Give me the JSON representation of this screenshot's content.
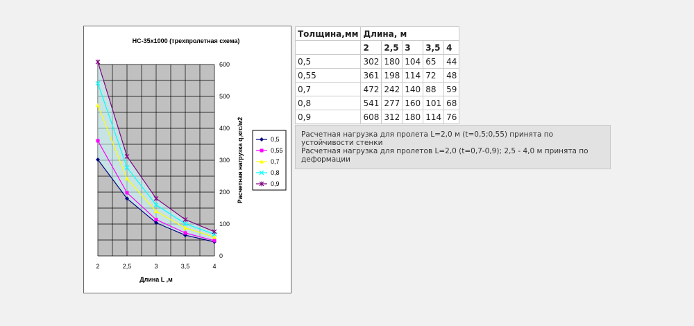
{
  "chart_data": {
    "type": "line",
    "title": "НС-35х1000 (трехпролетная схема)",
    "xlabel": "Длина L ,м",
    "ylabel": "Расчетная нагрузка q,кгс/м2",
    "x": [
      2,
      2.5,
      3,
      3.5,
      4
    ],
    "xlim": [
      2,
      4
    ],
    "ylim": [
      0,
      600
    ],
    "xticks": [
      "2",
      "2,5",
      "3",
      "3,5",
      "4"
    ],
    "yticks": [
      "0",
      "100",
      "200",
      "300",
      "400",
      "500",
      "600"
    ],
    "grid": true,
    "plot_background": "#c0c0c0",
    "legend_position": "right",
    "series": [
      {
        "name": "0,5",
        "values": [
          302,
          180,
          104,
          65,
          44
        ],
        "color": "#000080",
        "marker": "diamond"
      },
      {
        "name": "0,55",
        "values": [
          361,
          198,
          114,
          72,
          48
        ],
        "color": "#ff00ff",
        "marker": "square"
      },
      {
        "name": "0,7",
        "values": [
          472,
          242,
          140,
          88,
          59
        ],
        "color": "#ffff00",
        "marker": "triangle"
      },
      {
        "name": "0,8",
        "values": [
          541,
          277,
          160,
          101,
          68
        ],
        "color": "#00ffff",
        "marker": "x"
      },
      {
        "name": "0,9",
        "values": [
          608,
          312,
          180,
          114,
          76
        ],
        "color": "#800080",
        "marker": "star"
      }
    ]
  },
  "table": {
    "header_thickness": "Толщина,мм",
    "header_length": "Длина, м",
    "lengths": [
      "2",
      "2,5",
      "3",
      "3,5",
      "4"
    ],
    "rows": [
      [
        "0,5",
        "302",
        "180",
        "104",
        "65",
        "44"
      ],
      [
        "0,55",
        "361",
        "198",
        "114",
        "72",
        "48"
      ],
      [
        "0,7",
        "472",
        "242",
        "140",
        "88",
        "59"
      ],
      [
        "0,8",
        "541",
        "277",
        "160",
        "101",
        "68"
      ],
      [
        "0,9",
        "608",
        "312",
        "180",
        "114",
        "76"
      ]
    ]
  },
  "note": {
    "line1": "Расчетная нагрузка для пролета L=2,0 м (t=0,5;0,55) принята по устойчивости стенки",
    "line2": "Расчетная нагрузка для пролетов L=2,0 (t=0,7-0,9); 2,5 - 4,0 м принята по деформации"
  }
}
